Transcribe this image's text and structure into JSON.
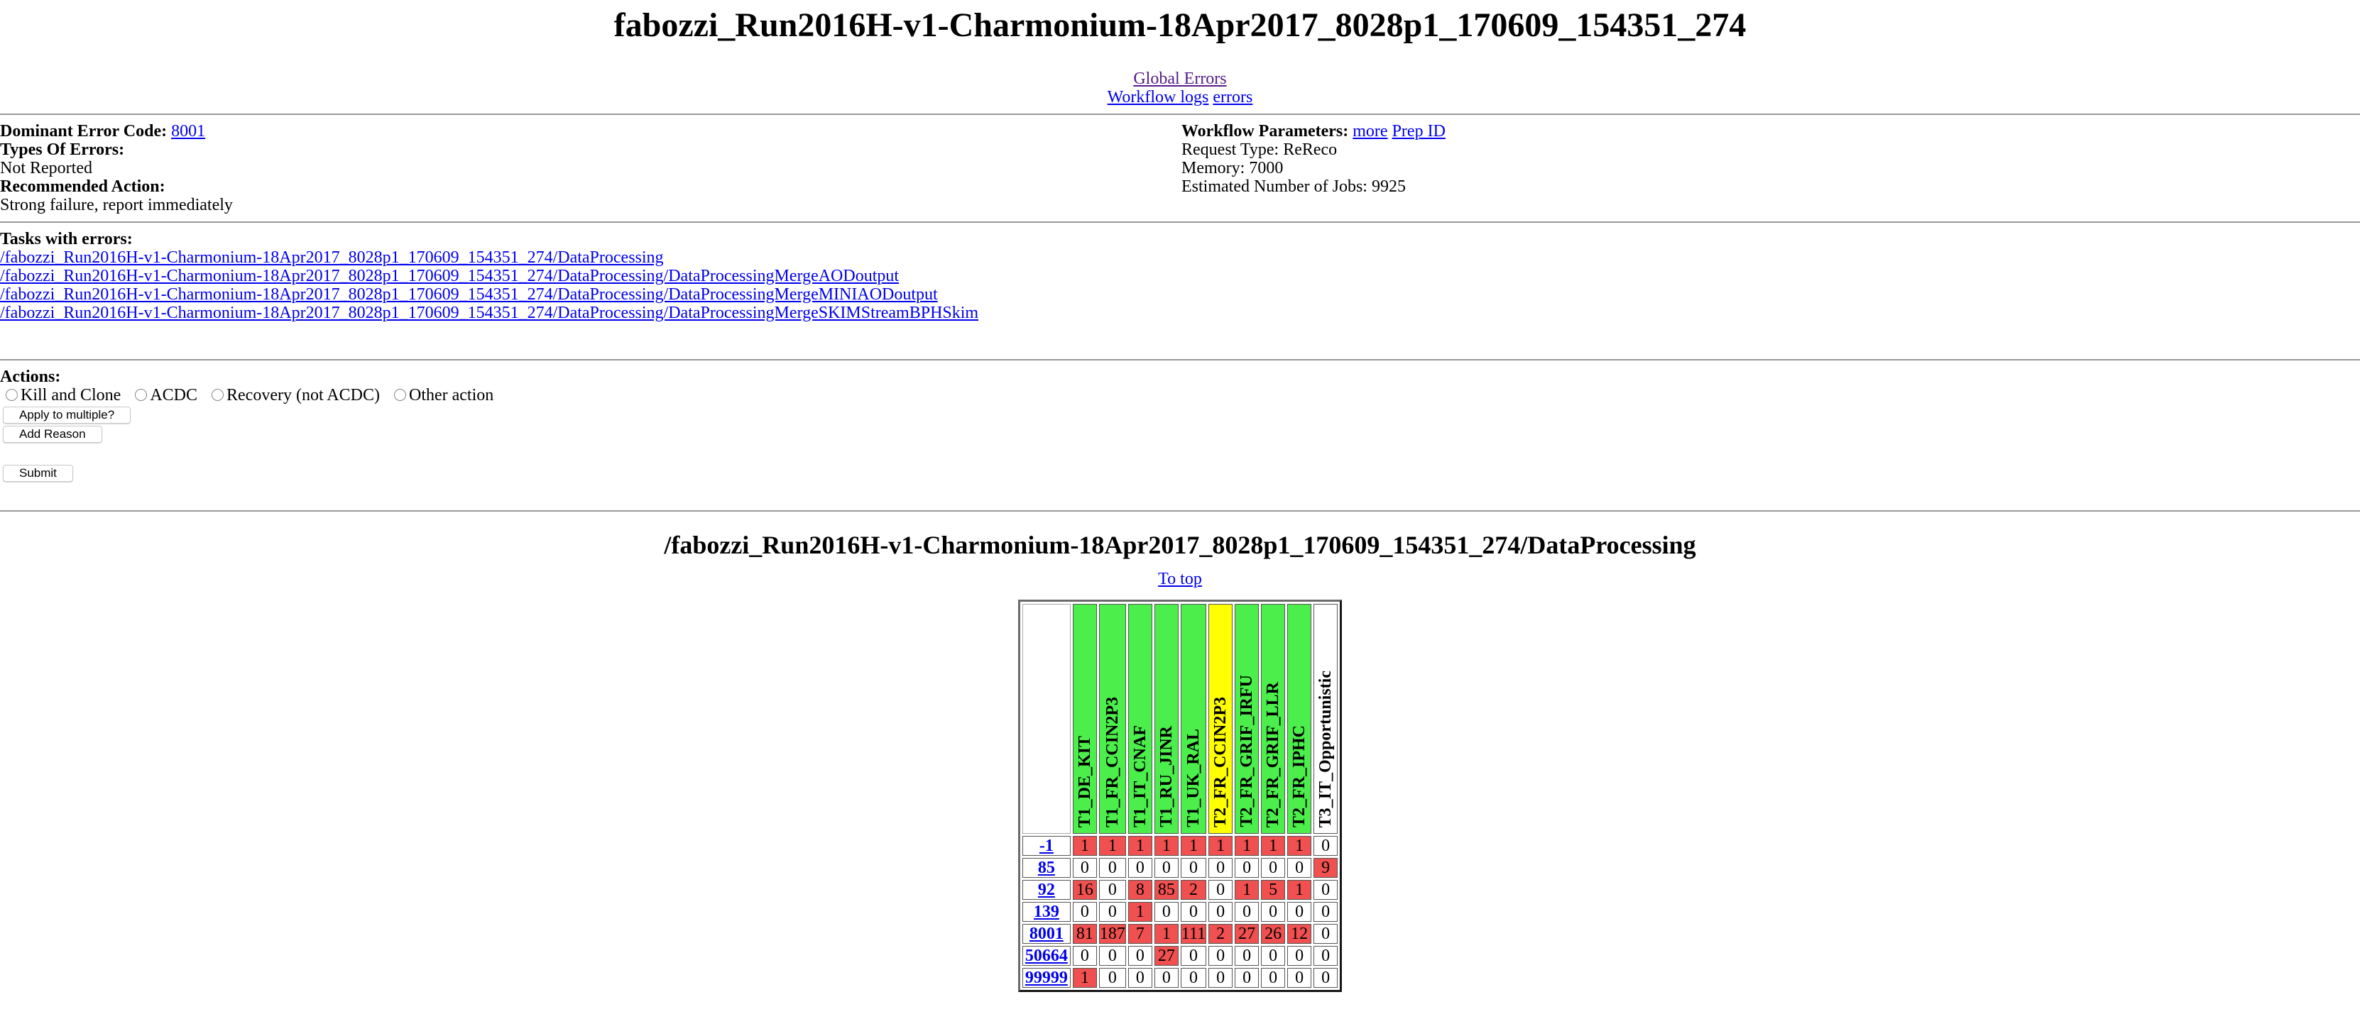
{
  "title": "fabozzi_Run2016H-v1-Charmonium-18Apr2017_8028p1_170609_154351_274",
  "links": {
    "global_errors": "Global Errors",
    "workflow_logs": "Workflow logs",
    "errors": "errors"
  },
  "summary": {
    "dominant_label": "Dominant Error Code:",
    "dominant_code": "8001",
    "types_label": "Types Of Errors:",
    "types_value": "Not Reported",
    "recommended_label": "Recommended Action:",
    "recommended_value": "Strong failure, report immediately"
  },
  "params": {
    "label": "Workflow Parameters:",
    "more": "more",
    "prep_id": "Prep ID",
    "request_type": "Request Type: ReReco",
    "memory": "Memory: 7000",
    "jobs": "Estimated Number of Jobs: 9925"
  },
  "tasks": {
    "label": "Tasks with errors:",
    "items": [
      "/fabozzi_Run2016H-v1-Charmonium-18Apr2017_8028p1_170609_154351_274/DataProcessing",
      "/fabozzi_Run2016H-v1-Charmonium-18Apr2017_8028p1_170609_154351_274/DataProcessing/DataProcessingMergeAODoutput",
      "/fabozzi_Run2016H-v1-Charmonium-18Apr2017_8028p1_170609_154351_274/DataProcessing/DataProcessingMergeMINIAODoutput",
      "/fabozzi_Run2016H-v1-Charmonium-18Apr2017_8028p1_170609_154351_274/DataProcessing/DataProcessingMergeSKIMStreamBPHSkim"
    ]
  },
  "actions": {
    "label": "Actions:",
    "options": [
      "Kill and Clone",
      "ACDC",
      "Recovery (not ACDC)",
      "Other action"
    ],
    "apply_multiple": "Apply to multiple?",
    "add_reason": "Add Reason",
    "submit": "Submit"
  },
  "section": {
    "title": "/fabozzi_Run2016H-v1-Charmonium-18Apr2017_8028p1_170609_154351_274/DataProcessing",
    "to_top": "To top"
  },
  "colors": {
    "red": "#f05050",
    "green": "#4cee4c",
    "yellow": "#ffff00",
    "white": "#ffffff"
  },
  "table": {
    "sites": [
      {
        "name": "T1_DE_KIT",
        "status": "green"
      },
      {
        "name": "T1_FR_CCIN2P3",
        "status": "green"
      },
      {
        "name": "T1_IT_CNAF",
        "status": "green"
      },
      {
        "name": "T1_RU_JINR",
        "status": "green"
      },
      {
        "name": "T1_UK_RAL",
        "status": "green"
      },
      {
        "name": "T2_FR_CCIN2P3",
        "status": "yellow"
      },
      {
        "name": "T2_FR_GRIF_IRFU",
        "status": "green"
      },
      {
        "name": "T2_FR_GRIF_LLR",
        "status": "green"
      },
      {
        "name": "T2_FR_IPHC",
        "status": "green"
      },
      {
        "name": "T3_IT_Opportunistic",
        "status": "white"
      }
    ],
    "rows": [
      {
        "code": "-1",
        "values": [
          1,
          1,
          1,
          1,
          1,
          1,
          1,
          1,
          1,
          0
        ]
      },
      {
        "code": "85",
        "values": [
          0,
          0,
          0,
          0,
          0,
          0,
          0,
          0,
          0,
          9
        ]
      },
      {
        "code": "92",
        "values": [
          16,
          0,
          8,
          85,
          2,
          0,
          1,
          5,
          1,
          0
        ]
      },
      {
        "code": "139",
        "values": [
          0,
          0,
          1,
          0,
          0,
          0,
          0,
          0,
          0,
          0
        ]
      },
      {
        "code": "8001",
        "values": [
          81,
          187,
          7,
          1,
          111,
          2,
          27,
          26,
          12,
          0
        ]
      },
      {
        "code": "50664",
        "values": [
          0,
          0,
          0,
          27,
          0,
          0,
          0,
          0,
          0,
          0
        ]
      },
      {
        "code": "99999",
        "values": [
          1,
          0,
          0,
          0,
          0,
          0,
          0,
          0,
          0,
          0
        ]
      }
    ]
  }
}
